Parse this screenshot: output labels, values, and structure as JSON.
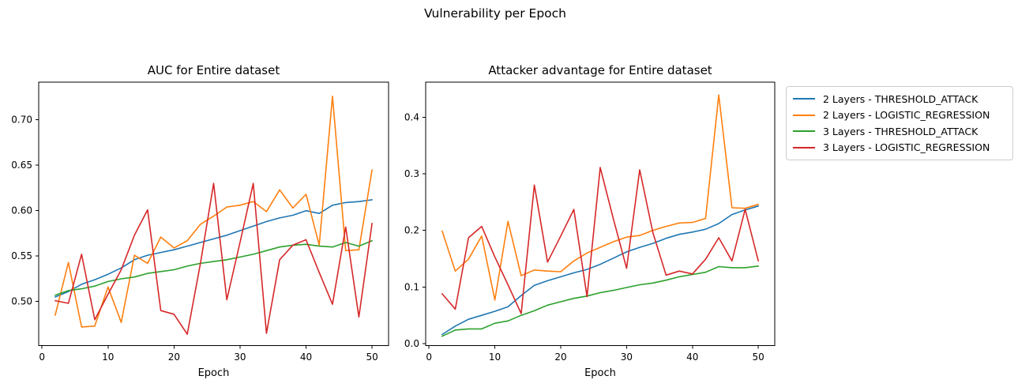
{
  "figure": {
    "suptitle": "Vulnerability per Epoch"
  },
  "palette": {
    "blue": "#1f77b4",
    "orange": "#ff7f0e",
    "green": "#2ca02c",
    "red": "#d62728"
  },
  "legend": {
    "entries": [
      {
        "label": "2 Layers - THRESHOLD_ATTACK",
        "color": "blue"
      },
      {
        "label": "2 Layers - LOGISTIC_REGRESSION",
        "color": "orange"
      },
      {
        "label": "3 Layers - THRESHOLD_ATTACK",
        "color": "green"
      },
      {
        "label": "3 Layers - LOGISTIC_REGRESSION",
        "color": "red"
      }
    ]
  },
  "chart_data": [
    {
      "type": "line",
      "title": "AUC for Entire dataset",
      "xlabel": "Epoch",
      "xlim": [
        -0.5,
        52.5
      ],
      "ylim": [
        0.4515,
        0.7415
      ],
      "xticks": [
        0,
        10,
        20,
        30,
        40,
        50
      ],
      "yticks": [
        "0.50",
        "0.55",
        "0.60",
        "0.65",
        "0.70"
      ],
      "grid": false,
      "x": [
        2,
        4,
        6,
        8,
        10,
        12,
        14,
        16,
        18,
        20,
        22,
        24,
        26,
        28,
        30,
        32,
        34,
        36,
        38,
        40,
        42,
        44,
        46,
        48,
        50
      ],
      "series": [
        {
          "name": "2 Layers - THRESHOLD_ATTACK",
          "color": "blue",
          "values": [
            0.505,
            0.511,
            0.519,
            0.524,
            0.53,
            0.537,
            0.546,
            0.551,
            0.554,
            0.557,
            0.561,
            0.565,
            0.569,
            0.573,
            0.578,
            0.583,
            0.588,
            0.592,
            0.595,
            0.6,
            0.597,
            0.606,
            0.609,
            0.61,
            0.612
          ]
        },
        {
          "name": "2 Layers - LOGISTIC_REGRESSION",
          "color": "orange",
          "values": [
            0.485,
            0.543,
            0.472,
            0.473,
            0.516,
            0.477,
            0.551,
            0.542,
            0.571,
            0.559,
            0.567,
            0.585,
            0.594,
            0.604,
            0.606,
            0.61,
            0.599,
            0.623,
            0.603,
            0.618,
            0.562,
            0.726,
            0.556,
            0.557,
            0.645
          ]
        },
        {
          "name": "3 Layers - THRESHOLD_ATTACK",
          "color": "green",
          "values": [
            0.507,
            0.512,
            0.514,
            0.517,
            0.522,
            0.525,
            0.527,
            0.531,
            0.533,
            0.535,
            0.539,
            0.542,
            0.544,
            0.546,
            0.549,
            0.552,
            0.556,
            0.56,
            0.562,
            0.563,
            0.561,
            0.56,
            0.565,
            0.561,
            0.567
          ]
        },
        {
          "name": "3 Layers - LOGISTIC_REGRESSION",
          "color": "red",
          "values": [
            0.501,
            0.498,
            0.552,
            0.48,
            0.508,
            0.535,
            0.573,
            0.601,
            0.49,
            0.486,
            0.464,
            0.542,
            0.63,
            0.502,
            0.565,
            0.63,
            0.465,
            0.546,
            0.562,
            0.568,
            0.532,
            0.497,
            0.582,
            0.483,
            0.586
          ]
        }
      ]
    },
    {
      "type": "line",
      "title": "Attacker advantage for Entire dataset",
      "xlabel": "Epoch",
      "xlim": [
        -0.5,
        52.5
      ],
      "ylim": [
        -0.0035,
        0.4618
      ],
      "xticks": [
        0,
        10,
        20,
        30,
        40,
        50
      ],
      "yticks": [
        "0.0",
        "0.1",
        "0.2",
        "0.3",
        "0.4"
      ],
      "grid": false,
      "x": [
        2,
        4,
        6,
        8,
        10,
        12,
        14,
        16,
        18,
        20,
        22,
        24,
        26,
        28,
        30,
        32,
        34,
        36,
        38,
        40,
        42,
        44,
        46,
        48,
        50
      ],
      "series": [
        {
          "name": "2 Layers - THRESHOLD_ATTACK",
          "color": "blue",
          "values": [
            0.016,
            0.031,
            0.043,
            0.05,
            0.057,
            0.065,
            0.085,
            0.103,
            0.111,
            0.118,
            0.125,
            0.131,
            0.14,
            0.151,
            0.162,
            0.17,
            0.177,
            0.186,
            0.193,
            0.197,
            0.202,
            0.212,
            0.228,
            0.236,
            0.243
          ]
        },
        {
          "name": "2 Layers - LOGISTIC_REGRESSION",
          "color": "orange",
          "values": [
            0.199,
            0.128,
            0.149,
            0.19,
            0.077,
            0.216,
            0.12,
            0.13,
            0.128,
            0.127,
            0.146,
            0.16,
            0.17,
            0.18,
            0.188,
            0.191,
            0.2,
            0.207,
            0.213,
            0.214,
            0.221,
            0.439,
            0.24,
            0.239,
            0.246
          ]
        },
        {
          "name": "3 Layers - THRESHOLD_ATTACK",
          "color": "green",
          "values": [
            0.013,
            0.024,
            0.026,
            0.026,
            0.036,
            0.04,
            0.05,
            0.058,
            0.068,
            0.074,
            0.08,
            0.084,
            0.09,
            0.094,
            0.099,
            0.104,
            0.107,
            0.112,
            0.118,
            0.122,
            0.126,
            0.136,
            0.134,
            0.134,
            0.137
          ]
        },
        {
          "name": "3 Layers - LOGISTIC_REGRESSION",
          "color": "red",
          "values": [
            0.088,
            0.061,
            0.187,
            0.207,
            0.153,
            0.104,
            0.053,
            0.28,
            0.144,
            0.19,
            0.237,
            0.083,
            0.311,
            0.22,
            0.133,
            0.307,
            0.196,
            0.121,
            0.128,
            0.123,
            0.149,
            0.187,
            0.146,
            0.237,
            0.146
          ]
        }
      ]
    }
  ]
}
